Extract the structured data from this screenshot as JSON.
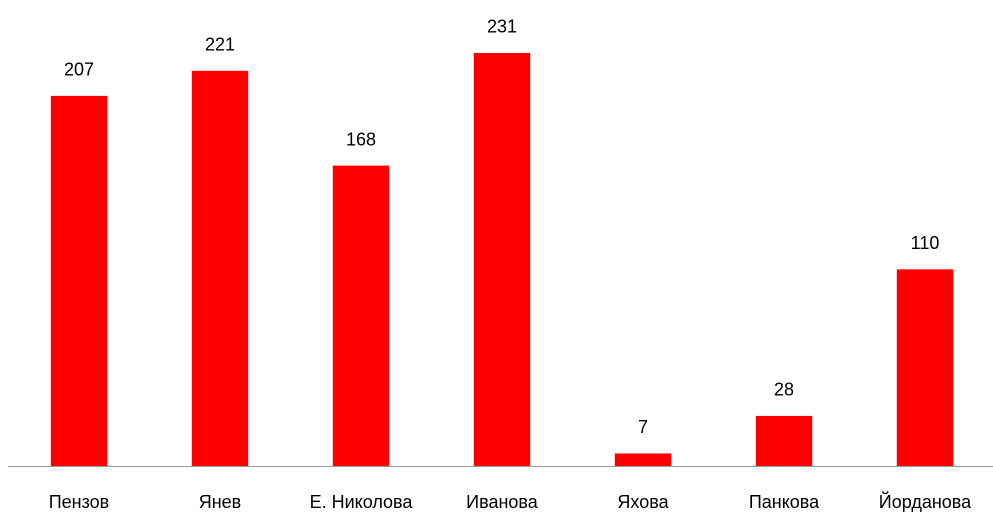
{
  "chart_data": {
    "type": "bar",
    "categories": [
      "Пензов",
      "Янев",
      "Е. Николова",
      "Иванова",
      "Яхова",
      "Панкова",
      "Йорданова"
    ],
    "values": [
      207,
      221,
      168,
      231,
      7,
      28,
      110
    ],
    "color": "#ff0000",
    "ylim": [
      0,
      250
    ]
  }
}
